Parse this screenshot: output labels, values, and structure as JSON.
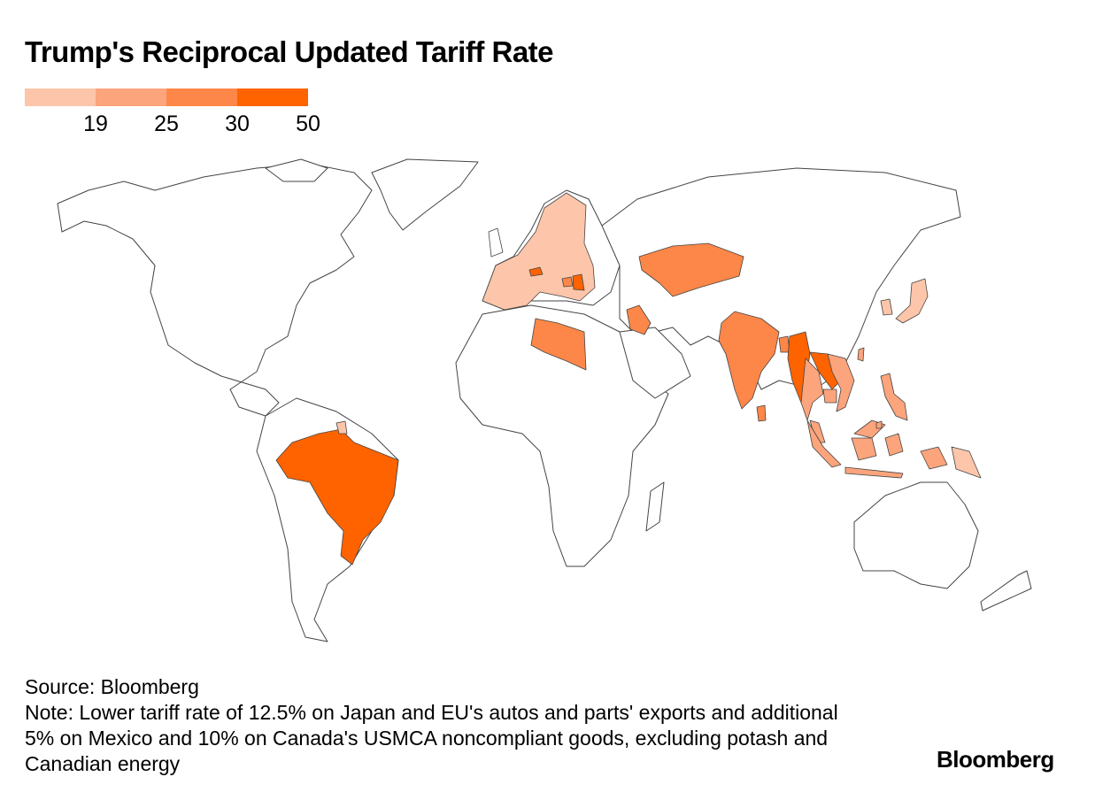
{
  "title": "Trump's Reciprocal Updated Tariff Rate",
  "legend": {
    "bins": [
      {
        "color": "#fdc5a9"
      },
      {
        "color": "#fca47c"
      },
      {
        "color": "#fd8748"
      },
      {
        "color": "#fe6300"
      }
    ],
    "tick_labels": [
      "19",
      "25",
      "30",
      "50"
    ]
  },
  "map": {
    "projection": "world",
    "base_fill": "#ffffff",
    "highlighted": [
      {
        "name": "Brazil",
        "bin": 3
      },
      {
        "name": "Libya",
        "bin": 2
      },
      {
        "name": "Iraq",
        "bin": 2
      },
      {
        "name": "India",
        "bin": 2
      },
      {
        "name": "Kazakhstan",
        "bin": 2
      },
      {
        "name": "Myanmar",
        "bin": 3
      },
      {
        "name": "Laos",
        "bin": 3
      },
      {
        "name": "Switzerland",
        "bin": 3
      },
      {
        "name": "Serbia",
        "bin": 3
      },
      {
        "name": "Bosnia",
        "bin": 2
      },
      {
        "name": "Sri Lanka",
        "bin": 2
      },
      {
        "name": "Bangladesh",
        "bin": 2
      },
      {
        "name": "Vietnam",
        "bin": 1
      },
      {
        "name": "Thailand",
        "bin": 1
      },
      {
        "name": "Cambodia",
        "bin": 1
      },
      {
        "name": "Malaysia",
        "bin": 1
      },
      {
        "name": "Indonesia",
        "bin": 1
      },
      {
        "name": "Philippines",
        "bin": 1
      },
      {
        "name": "Brunei",
        "bin": 1
      },
      {
        "name": "Taiwan",
        "bin": 1
      },
      {
        "name": "Japan",
        "bin": 0
      },
      {
        "name": "South Korea",
        "bin": 0
      },
      {
        "name": "European Union",
        "bin": 0
      },
      {
        "name": "Guyana",
        "bin": 0
      },
      {
        "name": "Papua New Guinea",
        "bin": 0
      }
    ]
  },
  "footer": {
    "source": "Source: Bloomberg",
    "note": "Note: Lower tariff rate of 12.5% on Japan and EU's autos and parts' exports and additional 5% on Mexico and 10% on Canada's USMCA noncompliant goods, excluding potash and Canadian energy"
  },
  "logo": "Bloomberg"
}
